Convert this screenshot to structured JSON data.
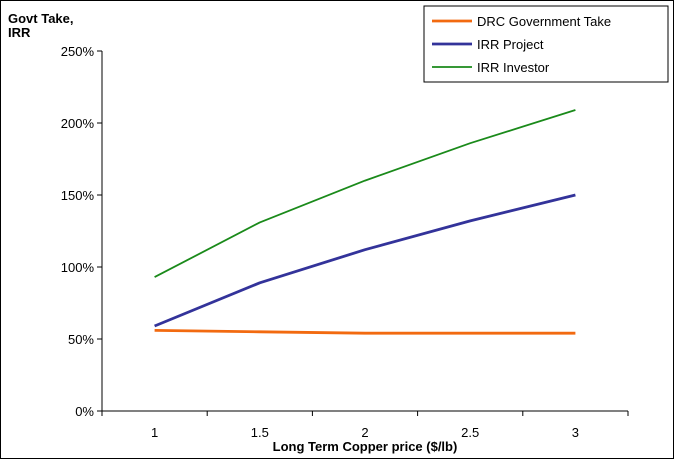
{
  "chart_data": {
    "type": "line",
    "ylabel_line1": "Govt Take,",
    "ylabel_line2": "IRR",
    "xlabel": "Long Term Copper price ($/lb)",
    "x": [
      1,
      1.5,
      2,
      2.5,
      3
    ],
    "x_tick_labels": [
      "1",
      "1.5",
      "2",
      "2.5",
      "3"
    ],
    "y_tick_labels": [
      "0%",
      "50%",
      "100%",
      "150%",
      "200%",
      "250%"
    ],
    "y_ticks": [
      0,
      50,
      100,
      150,
      200,
      250
    ],
    "xlim": [
      0.75,
      3.25
    ],
    "ylim": [
      0,
      250
    ],
    "grid": false,
    "legend_position": "top-right",
    "series": [
      {
        "name": "DRC Government Take",
        "color": "#f26a10",
        "values": [
          56,
          55,
          54,
          54,
          54
        ]
      },
      {
        "name": "IRR Project",
        "color": "#33339a",
        "values": [
          59,
          89,
          112,
          132,
          150
        ]
      },
      {
        "name": "IRR Investor",
        "color": "#1a8a1a",
        "values": [
          93,
          131,
          160,
          186,
          209
        ]
      }
    ]
  }
}
